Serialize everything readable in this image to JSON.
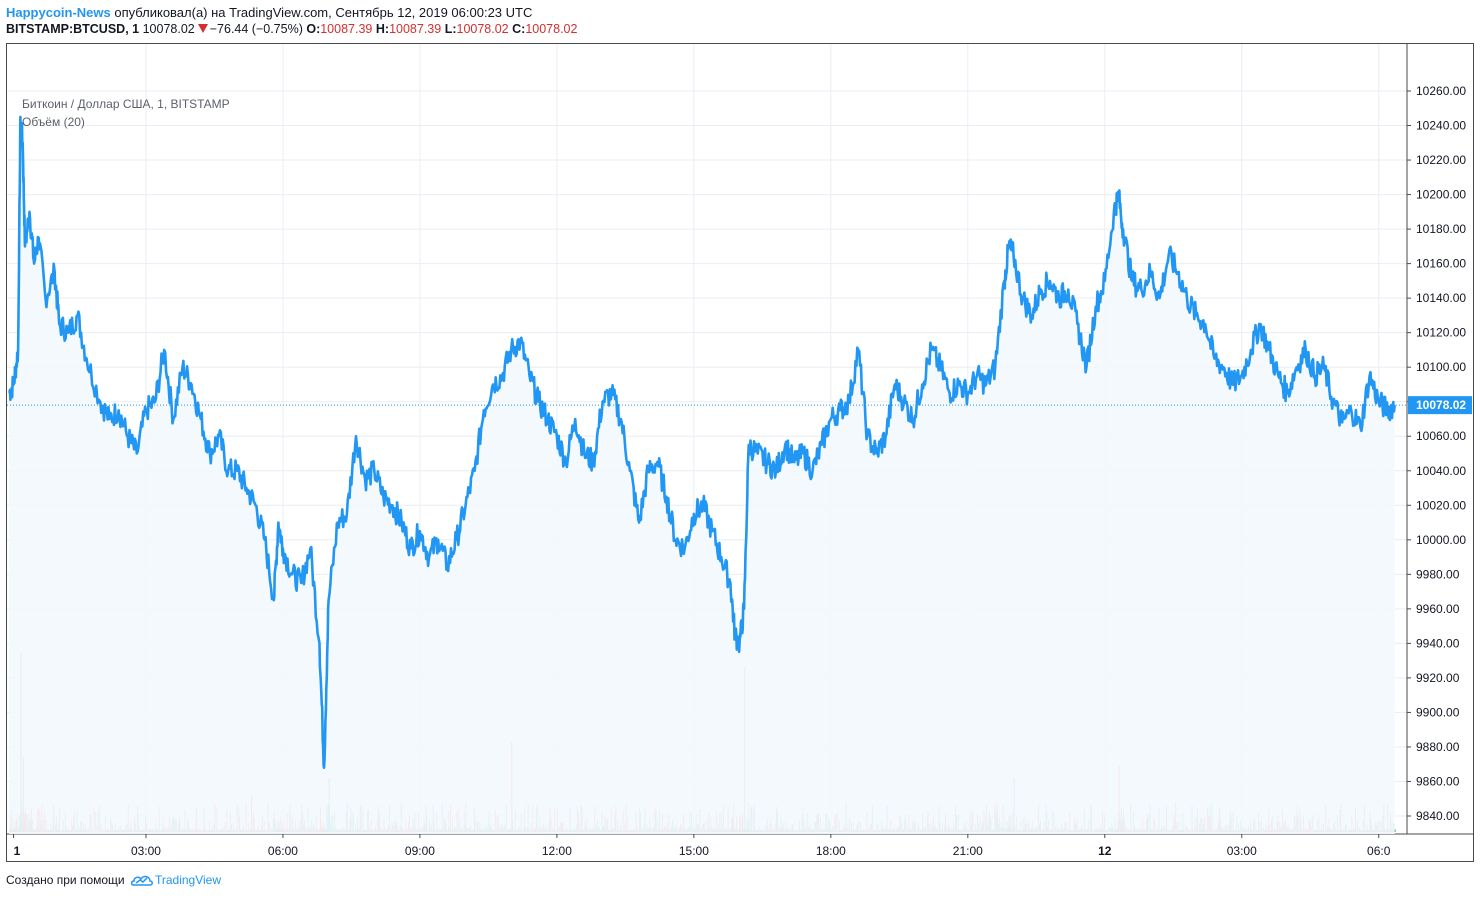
{
  "header": {
    "author": "Happycoin-News",
    "published_text": " опубликовал(а) на TradingView.com, Сентябрь 12, 2019 06:00:23 UTC",
    "symbol": "BITSTAMP:BTCUSD, 1",
    "last": "10078.02",
    "change": "−76.44 (−0.75%)",
    "o_label": "O:",
    "o_value": "10087.39",
    "h_label": "H:",
    "h_value": "10087.39",
    "l_label": "L:",
    "l_value": "10078.02",
    "c_label": "C:",
    "c_value": "10078.02"
  },
  "legend": {
    "instrument": "Биткоин / Доллар США, 1, BITSTAMP",
    "volume": "Объём (20)"
  },
  "footer": {
    "created_with": "Создано при помощи",
    "brand": "TradingView"
  },
  "colors": {
    "line": "#2196f3",
    "fill": "#f3f8fd",
    "grid": "#e9eef4",
    "price_tag": "#2196f3",
    "vol_up": "#26a69a",
    "vol_down": "#ef5350"
  },
  "chart_data": {
    "type": "line",
    "title": "Биткоин / Доллар США, 1, BITSTAMP",
    "x_ticks": [
      "1",
      "03:00",
      "06:00",
      "09:00",
      "12:00",
      "15:00",
      "18:00",
      "21:00",
      "12",
      "03:00",
      "06:0"
    ],
    "y_ticks": [
      9840,
      9860,
      9880,
      9900,
      9920,
      9940,
      9960,
      9980,
      10000,
      10020,
      10040,
      10060,
      10080,
      10100,
      10120,
      10140,
      10160,
      10180,
      10200,
      10220,
      10240,
      10260
    ],
    "ylim": [
      9830,
      10270
    ],
    "last_price": 10078.02,
    "last_price_label": "10078.02",
    "x_range_hours": [
      0,
      30.4
    ],
    "series": [
      {
        "values_hours_price": [
          [
            0.0,
            10085
          ],
          [
            0.1,
            10090
          ],
          [
            0.2,
            10110
          ],
          [
            0.25,
            10245
          ],
          [
            0.3,
            10230
          ],
          [
            0.35,
            10170
          ],
          [
            0.45,
            10190
          ],
          [
            0.55,
            10160
          ],
          [
            0.65,
            10175
          ],
          [
            0.8,
            10140
          ],
          [
            1.0,
            10155
          ],
          [
            1.1,
            10125
          ],
          [
            1.3,
            10120
          ],
          [
            1.5,
            10130
          ],
          [
            1.7,
            10105
          ],
          [
            2.0,
            10080
          ],
          [
            2.2,
            10070
          ],
          [
            2.4,
            10075
          ],
          [
            2.6,
            10060
          ],
          [
            2.8,
            10050
          ],
          [
            3.0,
            10075
          ],
          [
            3.2,
            10080
          ],
          [
            3.4,
            10110
          ],
          [
            3.6,
            10070
          ],
          [
            3.8,
            10100
          ],
          [
            4.0,
            10090
          ],
          [
            4.2,
            10070
          ],
          [
            4.4,
            10050
          ],
          [
            4.6,
            10060
          ],
          [
            4.8,
            10040
          ],
          [
            5.0,
            10040
          ],
          [
            5.2,
            10030
          ],
          [
            5.4,
            10020
          ],
          [
            5.6,
            10000
          ],
          [
            5.8,
            9965
          ],
          [
            5.9,
            10010
          ],
          [
            6.0,
            9995
          ],
          [
            6.2,
            9980
          ],
          [
            6.4,
            9975
          ],
          [
            6.6,
            9995
          ],
          [
            6.8,
            9940
          ],
          [
            6.9,
            9868
          ],
          [
            7.0,
            9965
          ],
          [
            7.2,
            10010
          ],
          [
            7.4,
            10015
          ],
          [
            7.6,
            10060
          ],
          [
            7.8,
            10035
          ],
          [
            8.0,
            10040
          ],
          [
            8.2,
            10025
          ],
          [
            8.4,
            10020
          ],
          [
            8.6,
            10010
          ],
          [
            8.8,
            9995
          ],
          [
            9.0,
            10005
          ],
          [
            9.2,
            9990
          ],
          [
            9.4,
            10000
          ],
          [
            9.6,
            9985
          ],
          [
            9.8,
            10000
          ],
          [
            10.0,
            10020
          ],
          [
            10.2,
            10040
          ],
          [
            10.4,
            10075
          ],
          [
            10.6,
            10090
          ],
          [
            10.8,
            10095
          ],
          [
            11.0,
            10110
          ],
          [
            11.2,
            10115
          ],
          [
            11.4,
            10095
          ],
          [
            11.6,
            10080
          ],
          [
            11.8,
            10070
          ],
          [
            12.0,
            10060
          ],
          [
            12.2,
            10045
          ],
          [
            12.4,
            10070
          ],
          [
            12.6,
            10050
          ],
          [
            12.8,
            10045
          ],
          [
            13.0,
            10080
          ],
          [
            13.2,
            10085
          ],
          [
            13.4,
            10070
          ],
          [
            13.6,
            10040
          ],
          [
            13.8,
            10010
          ],
          [
            14.0,
            10040
          ],
          [
            14.2,
            10045
          ],
          [
            14.4,
            10025
          ],
          [
            14.6,
            10000
          ],
          [
            14.8,
            9995
          ],
          [
            15.0,
            10015
          ],
          [
            15.2,
            10020
          ],
          [
            15.4,
            10005
          ],
          [
            15.6,
            9990
          ],
          [
            15.8,
            9975
          ],
          [
            15.9,
            9945
          ],
          [
            16.0,
            9940
          ],
          [
            16.1,
            9960
          ],
          [
            16.2,
            10055
          ],
          [
            16.4,
            10050
          ],
          [
            16.6,
            10045
          ],
          [
            16.8,
            10040
          ],
          [
            17.0,
            10055
          ],
          [
            17.2,
            10045
          ],
          [
            17.4,
            10050
          ],
          [
            17.6,
            10040
          ],
          [
            17.8,
            10055
          ],
          [
            18.0,
            10070
          ],
          [
            18.2,
            10075
          ],
          [
            18.4,
            10080
          ],
          [
            18.6,
            10110
          ],
          [
            18.8,
            10060
          ],
          [
            19.0,
            10050
          ],
          [
            19.2,
            10060
          ],
          [
            19.4,
            10090
          ],
          [
            19.6,
            10080
          ],
          [
            19.8,
            10070
          ],
          [
            20.0,
            10090
          ],
          [
            20.2,
            10110
          ],
          [
            20.4,
            10100
          ],
          [
            20.6,
            10085
          ],
          [
            20.8,
            10090
          ],
          [
            21.0,
            10085
          ],
          [
            21.2,
            10095
          ],
          [
            21.4,
            10090
          ],
          [
            21.6,
            10100
          ],
          [
            21.8,
            10150
          ],
          [
            21.9,
            10170
          ],
          [
            22.0,
            10165
          ],
          [
            22.2,
            10140
          ],
          [
            22.4,
            10130
          ],
          [
            22.6,
            10145
          ],
          [
            22.8,
            10150
          ],
          [
            23.0,
            10140
          ],
          [
            23.2,
            10145
          ],
          [
            23.4,
            10125
          ],
          [
            23.6,
            10100
          ],
          [
            23.8,
            10135
          ],
          [
            24.0,
            10150
          ],
          [
            24.2,
            10190
          ],
          [
            24.3,
            10200
          ],
          [
            24.4,
            10180
          ],
          [
            24.6,
            10150
          ],
          [
            24.8,
            10145
          ],
          [
            25.0,
            10155
          ],
          [
            25.2,
            10140
          ],
          [
            25.4,
            10165
          ],
          [
            25.6,
            10155
          ],
          [
            25.8,
            10140
          ],
          [
            26.0,
            10130
          ],
          [
            26.2,
            10125
          ],
          [
            26.4,
            10105
          ],
          [
            26.6,
            10100
          ],
          [
            26.8,
            10090
          ],
          [
            27.0,
            10095
          ],
          [
            27.2,
            10110
          ],
          [
            27.4,
            10125
          ],
          [
            27.6,
            10110
          ],
          [
            27.8,
            10095
          ],
          [
            28.0,
            10085
          ],
          [
            28.2,
            10100
          ],
          [
            28.4,
            10110
          ],
          [
            28.6,
            10095
          ],
          [
            28.8,
            10100
          ],
          [
            29.0,
            10080
          ],
          [
            29.2,
            10068
          ],
          [
            29.4,
            10075
          ],
          [
            29.6,
            10065
          ],
          [
            29.8,
            10095
          ],
          [
            30.0,
            10080
          ],
          [
            30.2,
            10075
          ],
          [
            30.35,
            10078
          ]
        ]
      }
    ],
    "volume_spikes_hours": [
      [
        0.25,
        0.6
      ],
      [
        0.3,
        0.25
      ],
      [
        7.0,
        0.18
      ],
      [
        11.0,
        0.3
      ],
      [
        16.1,
        0.55
      ],
      [
        24.3,
        0.22
      ],
      [
        22.0,
        0.18
      ],
      [
        5.3,
        0.12
      ]
    ]
  }
}
